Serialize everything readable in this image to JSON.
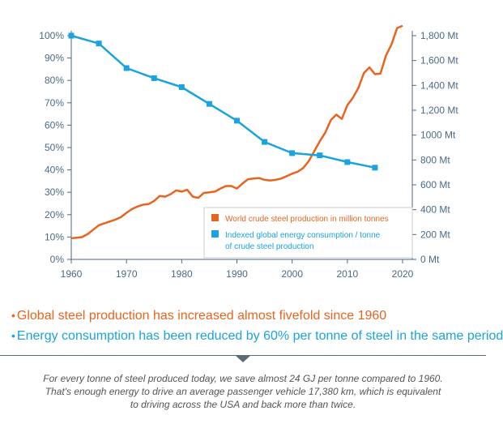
{
  "chart_data": {
    "type": "line",
    "title": "",
    "xlabel": "",
    "xlim": [
      1960,
      2020
    ],
    "x_ticks": [
      "1960",
      "1970",
      "1980",
      "1990",
      "2000",
      "2010",
      "2020"
    ],
    "y_left": {
      "label": "",
      "lim": [
        0,
        100
      ],
      "ticks": [
        "0%",
        "10%",
        "20%",
        "30%",
        "40%",
        "50%",
        "60%",
        "70%",
        "80%",
        "90%",
        "100%"
      ]
    },
    "y_right": {
      "label": "",
      "lim": [
        0,
        1800
      ],
      "ticks": [
        "0 Mt",
        "200 Mt",
        "400 Mt",
        "600 Mt",
        "800 Mt",
        "1000 Mt",
        "1,200 Mt",
        "1,400 Mt",
        "1,600 Mt",
        "1,800 Mt"
      ]
    },
    "legend_position": "lower-right",
    "series": [
      {
        "name": "World crude steel production in million tonnes",
        "color": "#e8641e",
        "axis": "right",
        "marker": "none",
        "x": [
          1960,
          1961,
          1962,
          1963,
          1964,
          1965,
          1966,
          1967,
          1968,
          1969,
          1970,
          1971,
          1972,
          1973,
          1974,
          1975,
          1976,
          1977,
          1978,
          1979,
          1980,
          1981,
          1982,
          1983,
          1984,
          1985,
          1986,
          1987,
          1988,
          1989,
          1990,
          1991,
          1992,
          1993,
          1994,
          1995,
          1996,
          1997,
          1998,
          1999,
          2000,
          2001,
          2002,
          2003,
          2004,
          2005,
          2006,
          2007,
          2008,
          2009,
          2010,
          2011,
          2012,
          2013,
          2014,
          2015,
          2016,
          2017,
          2018,
          2019,
          2020
        ],
        "y": [
          170,
          175,
          180,
          205,
          240,
          275,
          290,
          305,
          320,
          340,
          375,
          405,
          425,
          440,
          445,
          470,
          510,
          505,
          525,
          555,
          545,
          560,
          505,
          495,
          535,
          540,
          545,
          570,
          590,
          590,
          570,
          610,
          645,
          650,
          655,
          640,
          635,
          640,
          650,
          670,
          690,
          705,
          735,
          790,
          870,
          950,
          1020,
          1120,
          1165,
          1130,
          1240,
          1300,
          1380,
          1500,
          1545,
          1490,
          1495,
          1640,
          1730,
          1860,
          1880
        ]
      },
      {
        "name": "Indexed global energy consumption / tonne of crude steel production",
        "color": "#1aa3dd",
        "axis": "left",
        "marker": "square",
        "x": [
          1960,
          1965,
          1970,
          1975,
          1980,
          1985,
          1990,
          1995,
          2000,
          2005,
          2010,
          2015
        ],
        "y": [
          100,
          96.5,
          85.5,
          81,
          77,
          69.5,
          62,
          52.5,
          47.5,
          46.5,
          43.5,
          41
        ]
      }
    ]
  },
  "legend": [
    {
      "lines": [
        "World crude steel production in million tonnes"
      ],
      "color": "#e8641e"
    },
    {
      "lines": [
        "Indexed global energy consumption / tonne",
        "of crude steel production"
      ],
      "color": "#1aa3dd"
    }
  ],
  "bullets": [
    {
      "text": "Global steel production has increased almost fivefold since 1960",
      "color": "#e8641e"
    },
    {
      "text": "Energy consumption has been reduced by 60% per tonne of steel in the same period",
      "color": "#1aa3dd"
    }
  ],
  "footnote": [
    "For every tonne of steel produced today, we save almost 24 GJ per tonne compared to 1960.",
    "That's enough energy to drive an average passenger vehicle 17,380 km, which is equivalent",
    "to driving across the USA and back more than twice."
  ]
}
